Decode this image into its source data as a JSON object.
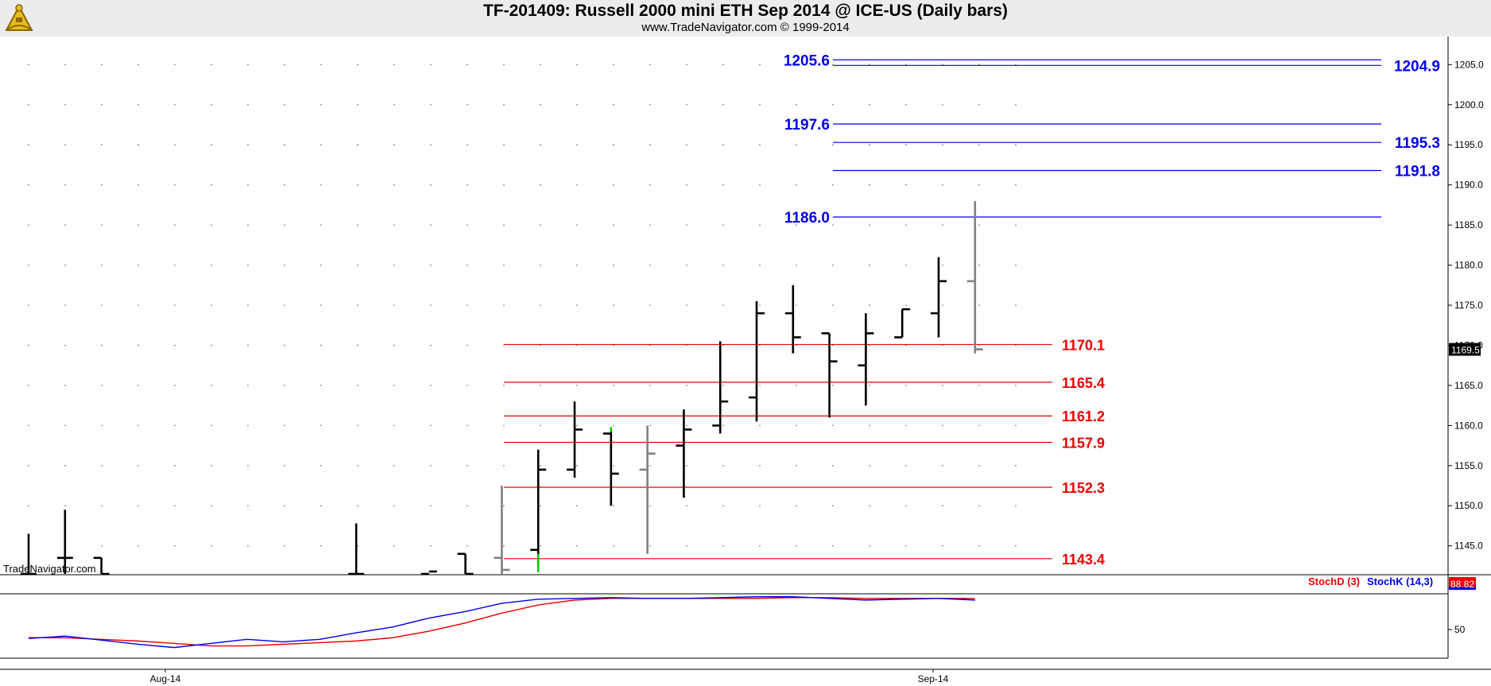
{
  "header": {
    "title": "TF-201409:  Russell 2000 mini ETH Sep 2014 @ ICE-US  (Daily bars)",
    "subtitle": "www.TradeNavigator.com © 1999-2014",
    "watermark": "TradeNavigator.com",
    "logo": "sextant-icon"
  },
  "colors": {
    "background": "#ffffff",
    "header_bg": "#ececec",
    "resistance": "#0000ee",
    "support": "#ee0000",
    "bar_up": "#000000",
    "bar_gray": "#808080",
    "bar_green": "#00cc00",
    "stoch_d": "#ee0000",
    "stoch_k": "#0000ee",
    "last_price_bg": "#000000",
    "stoch_value_bg": "#ee0000"
  },
  "chart_data": {
    "type": "ohlc",
    "title": "TF-201409:  Russell 2000 mini ETH Sep 2014 @ ICE-US  (Daily bars)",
    "ylim": [
      1141.5,
      1208.5
    ],
    "yticks": [
      1145,
      1150,
      1155,
      1160,
      1165,
      1170,
      1175,
      1180,
      1185,
      1190,
      1195,
      1200,
      1205
    ],
    "ytick_labels": [
      "1145.0",
      "1150.0",
      "1155.0",
      "1160.0",
      "1165.0",
      "1170.0",
      "1175.0",
      "1180.0",
      "1185.0",
      "1190.0",
      "1195.0",
      "1200.0",
      "1205.0"
    ],
    "xtick_labels": [
      {
        "label": "Aug-14",
        "bar": 3
      },
      {
        "label": "Sep-14",
        "bar": 24
      }
    ],
    "grid": "dotted",
    "last_price": "1169.5",
    "bars": [
      {
        "o": 1141.5,
        "h": 1146.5,
        "l": 1141.5,
        "c": 1141.5,
        "color": "black"
      },
      {
        "o": 1143.5,
        "h": 1149.5,
        "l": 1141.5,
        "c": 1143.5,
        "color": "black"
      },
      {
        "o": 1143.5,
        "h": 1143.5,
        "l": 1141.5,
        "c": 1141.5,
        "color": "black"
      },
      null,
      null,
      null,
      null,
      null,
      null,
      {
        "o": 1141.5,
        "h": 1147.8,
        "l": 1141.5,
        "c": 1141.5,
        "color": "black"
      },
      null,
      {
        "o": 1141.5,
        "h": 1141.5,
        "l": 1141.5,
        "c": 1141.8,
        "color": "black"
      },
      {
        "o": 1144.0,
        "h": 1144.0,
        "l": 1141.5,
        "c": 1141.5,
        "color": "black"
      },
      {
        "o": 1143.5,
        "h": 1152.5,
        "l": 1141.5,
        "c": 1142.0,
        "color": "gray"
      },
      {
        "o": 1144.5,
        "h": 1157.0,
        "l": 1142.5,
        "c": 1154.5,
        "color": "black"
      },
      {
        "o": 1154.5,
        "h": 1163.0,
        "l": 1153.5,
        "c": 1159.5,
        "color": "black"
      },
      {
        "o": 1159.0,
        "h": 1159.5,
        "l": 1150.0,
        "c": 1154.0,
        "color": "black"
      },
      {
        "o": 1154.5,
        "h": 1160.0,
        "l": 1144.0,
        "c": 1156.5,
        "color": "gray"
      },
      {
        "o": 1157.5,
        "h": 1162.0,
        "l": 1151.0,
        "c": 1159.5,
        "color": "black"
      },
      {
        "o": 1160.0,
        "h": 1170.5,
        "l": 1159.0,
        "c": 1163.0,
        "color": "black"
      },
      {
        "o": 1163.5,
        "h": 1175.5,
        "l": 1160.5,
        "c": 1174.0,
        "color": "black"
      },
      {
        "o": 1174.0,
        "h": 1177.5,
        "l": 1169.0,
        "c": 1171.0,
        "color": "black"
      },
      {
        "o": 1171.5,
        "h": 1171.5,
        "l": 1161.0,
        "c": 1168.0,
        "color": "black"
      },
      {
        "o": 1167.5,
        "h": 1174.0,
        "l": 1162.5,
        "c": 1171.5,
        "color": "black"
      },
      {
        "o": 1171.0,
        "h": 1174.5,
        "l": 1171.0,
        "c": 1174.5,
        "color": "black"
      },
      {
        "o": 1174.0,
        "h": 1181.0,
        "l": 1171.0,
        "c": 1178.0,
        "color": "black"
      },
      {
        "o": 1178.0,
        "h": 1188.0,
        "l": 1169.0,
        "c": 1169.5,
        "color": "gray"
      }
    ],
    "resistance_lines": [
      {
        "label": "1205.6",
        "value": 1205.6,
        "label_side": "left"
      },
      {
        "label": "1204.9",
        "value": 1204.9,
        "label_side": "right"
      },
      {
        "label": "1197.6",
        "value": 1197.6,
        "label_side": "left"
      },
      {
        "label": "1195.3",
        "value": 1195.3,
        "label_side": "right"
      },
      {
        "label": "1191.8",
        "value": 1191.8,
        "label_side": "right"
      },
      {
        "label": "1186.0",
        "value": 1186.0,
        "label_side": "left"
      }
    ],
    "support_lines": [
      {
        "label": "1170.1",
        "value": 1170.1
      },
      {
        "label": "1165.4",
        "value": 1165.4
      },
      {
        "label": "1161.2",
        "value": 1161.2
      },
      {
        "label": "1157.9",
        "value": 1157.9
      },
      {
        "label": "1152.3",
        "value": 1152.3
      },
      {
        "label": "1143.4",
        "value": 1143.4
      }
    ],
    "stochastic": {
      "stoch_d_label": "StochD (3)",
      "stoch_k_label": "StochK (14,3)",
      "current_value": "88.82",
      "ytick_label": "50",
      "ylim": [
        15,
        115
      ],
      "stoch_d": [
        40,
        40,
        38,
        36,
        33,
        30,
        30,
        32,
        34,
        36,
        40,
        48,
        58,
        70,
        80,
        86,
        88,
        88,
        88,
        88,
        88,
        89,
        89,
        88,
        88,
        88,
        88
      ],
      "stoch_k": [
        39,
        42,
        37,
        32,
        28,
        33,
        38,
        35,
        38,
        46,
        53,
        64,
        72,
        82,
        87,
        88,
        89,
        88,
        88,
        89,
        90,
        90,
        88,
        86,
        87,
        88,
        86
      ]
    }
  }
}
